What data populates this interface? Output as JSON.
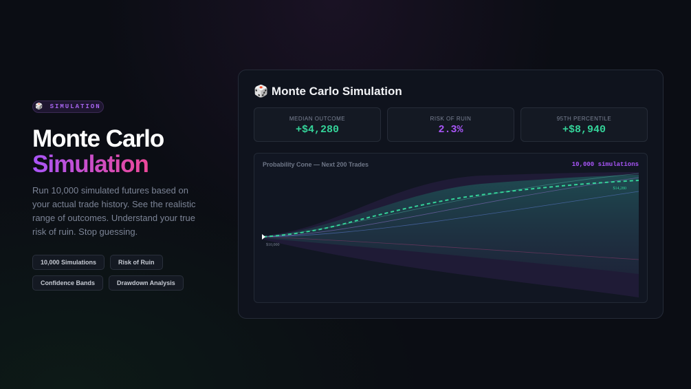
{
  "badge": {
    "icon": "🎲",
    "text": "SIMULATION"
  },
  "hero": {
    "title_line1": "Monte Carlo",
    "title_line2": "Simulation",
    "description": "Run 10,000 simulated futures based on your actual trade history. See the realistic range of outcomes. Understand your true risk of ruin. Stop guessing."
  },
  "tags": [
    "10,000 Simulations",
    "Risk of Ruin",
    "Confidence Bands",
    "Drawdown Analysis"
  ],
  "card": {
    "icon": "🎲",
    "title": "Monte Carlo Simulation",
    "stats": [
      {
        "label": "MEDIAN OUTCOME",
        "value": "+$4,280"
      },
      {
        "label": "RISK OF RUIN",
        "value": "2.3%"
      },
      {
        "label": "95TH PERCENTILE",
        "value": "+$8,940"
      }
    ],
    "chart": {
      "title": "Probability Cone — Next 200 Trades",
      "count": "10,000 simulations",
      "start_label": "$10,000",
      "end_label": "$14,280"
    }
  }
}
